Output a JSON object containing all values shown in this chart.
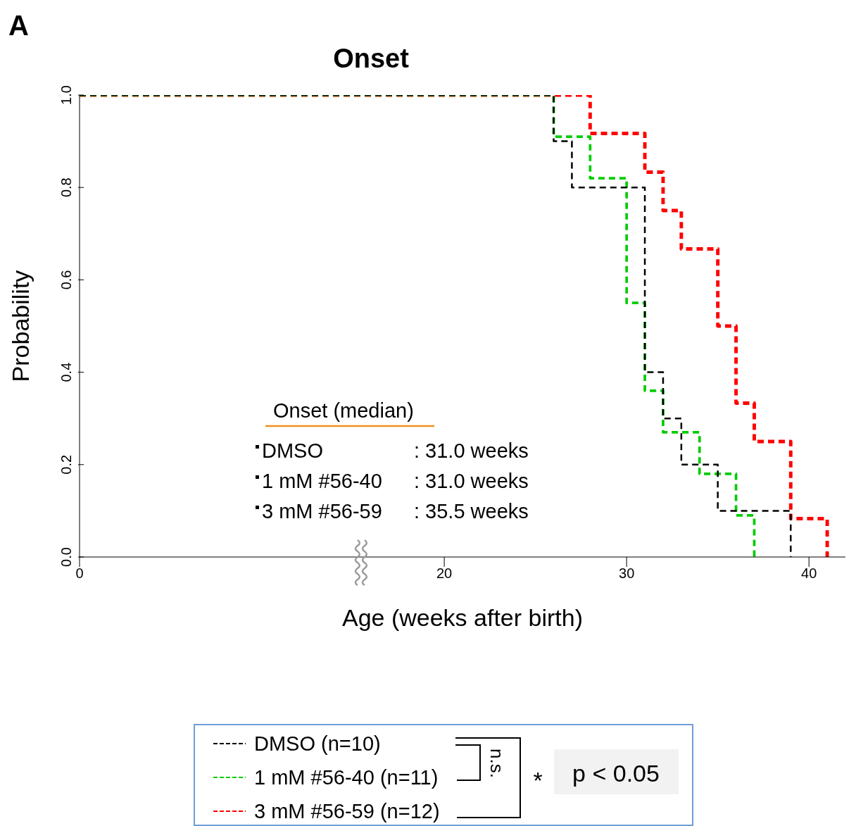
{
  "chart_data": {
    "type": "step",
    "title": "Onset",
    "xlabel": "Age (weeks after birth)",
    "ylabel": "Probability",
    "xlim": [
      0,
      42
    ],
    "xticks": [
      0,
      20,
      30,
      40
    ],
    "ylim": [
      0,
      1
    ],
    "yticks": [
      {
        "value": 0,
        "label": "0.0"
      },
      {
        "value": 0.2,
        "label": "0.2"
      },
      {
        "value": 0.4,
        "label": "0.4"
      },
      {
        "value": 0.6,
        "label": "0.6"
      },
      {
        "value": 0.8,
        "label": "0.8"
      },
      {
        "value": 1,
        "label": "1.0"
      }
    ],
    "line_style": "dashed",
    "legend": "bottom",
    "series": [
      {
        "name": "3 mM #56-59 (n=12)",
        "color": "#ff0000",
        "x": [
          0,
          28,
          31,
          32,
          33,
          35,
          36,
          37,
          39,
          41
        ],
        "values": [
          1,
          0.917,
          0.833,
          0.75,
          0.667,
          0.5,
          0.333,
          0.25,
          0.083,
          0
        ]
      },
      {
        "name": "1 mM #56-40 (n=11)",
        "color": "#00cc00",
        "x": [
          0,
          26,
          28,
          30,
          31,
          32,
          34,
          36,
          37
        ],
        "values": [
          1,
          0.91,
          0.82,
          0.55,
          0.36,
          0.27,
          0.18,
          0.09,
          0
        ]
      },
      {
        "name": "DMSO (n=10)",
        "color": "#000000",
        "x": [
          0,
          26,
          27,
          31,
          32,
          33,
          35,
          39
        ],
        "values": [
          1,
          0.9,
          0.8,
          0.4,
          0.3,
          0.2,
          0.1,
          0
        ]
      }
    ],
    "annotations": [
      "A",
      "Onset (median)",
      "DMSO",
      ": 31.0 weeks",
      "1 mM #56-40",
      ": 31.0 weeks",
      "3 mM #56-59",
      ": 35.5 weeks",
      "n.s.",
      "*",
      "p < 0.05"
    ]
  }
}
